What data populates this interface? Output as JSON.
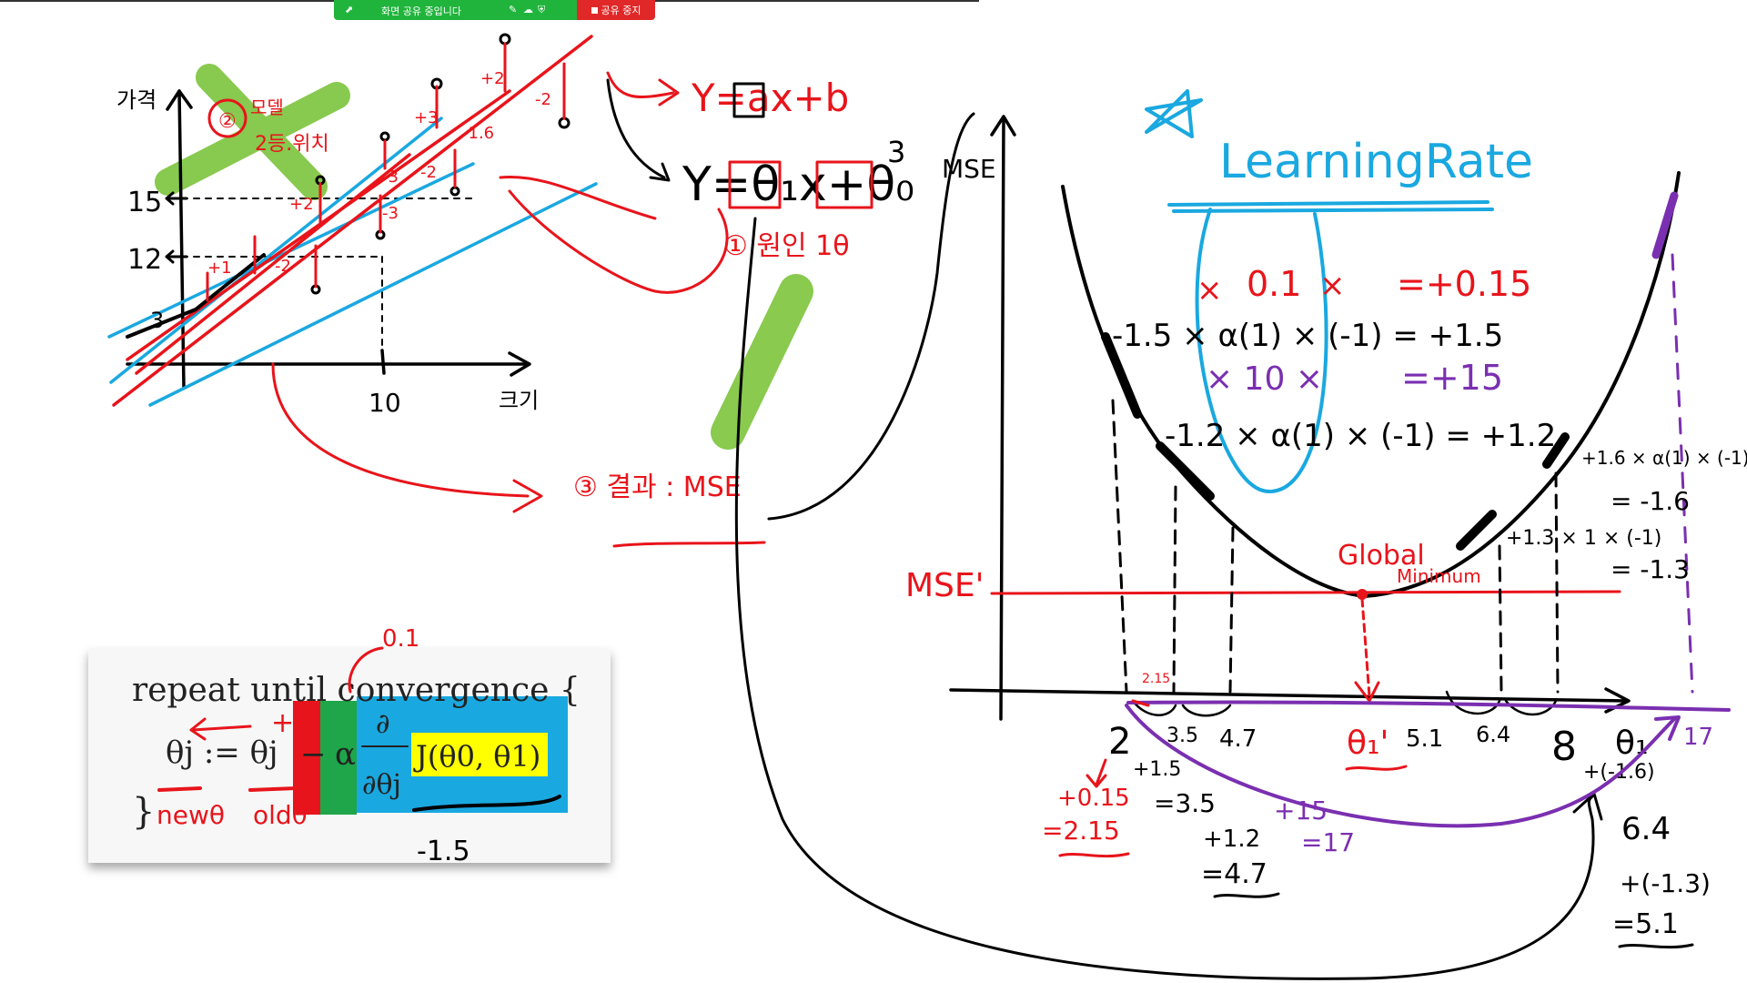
{
  "sharebar": {
    "status_label": "화면 공유 중입니다",
    "stop_label": "공유 중지",
    "colors": {
      "bar": "#20b43c",
      "stop": "#e02828"
    }
  },
  "colors": {
    "ink": "#000000",
    "red": "#e8141b",
    "blue": "#1aa8e0",
    "purple": "#7a2fb0",
    "green": "#7cc43c",
    "yellow": "#ffff00",
    "formula_green": "#1fa64a"
  },
  "left_graph": {
    "y_axis_label": "가격",
    "x_axis_label": "크기",
    "ticks": {
      "y15": "15",
      "y12": "12",
      "y3": "3",
      "x10": "10"
    },
    "annot2": {
      "num": "②",
      "line1": "모델",
      "line2": "2등.위치"
    },
    "diffs": [
      "+2",
      "+3",
      "+2",
      "+1",
      "-2",
      "-2",
      "-3",
      "-1.6",
      "-3",
      "-2"
    ]
  },
  "equations": {
    "eq1": "Y=ax+b",
    "eq2": "Y=θ₁x+θ₀",
    "b_note": "3",
    "note1": "① 원인 1θ",
    "note3": "③ 결과 : MSE",
    "mse": "MSE"
  },
  "formula": {
    "line1": "repeat until convergence {",
    "lhs": "θj := θj",
    "minus": "−",
    "alpha": "α",
    "partial_top": "∂",
    "partial_bottom": "∂θj",
    "cost": "J(θ0, θ1)",
    "close": "}",
    "new_label": "newθ",
    "old_label": "oldθ",
    "alpha_note": "0.1",
    "grad_note": "-1.5",
    "plus": "+"
  },
  "right_graph": {
    "title": "LearningRate",
    "y_axis": "MSE",
    "mse_prime": "MSE'",
    "global1": "Global",
    "global2": "Minimum",
    "calc_line1": {
      "lead": "×",
      "a": "0.1",
      "b": "×",
      "res": "=+0.15"
    },
    "calc_line2": "-1.5 × α(1) × (-1) = +1.5",
    "calc_line3": {
      "a": "× 10 ×",
      "res": "=+15"
    },
    "calc_line4": "-1.2 × α(1) × (-1) = +1.2",
    "right_note1": "+1.6 × α(1) × (-1)",
    "right_note1b": "= -1.6",
    "right_note2": "+1.3 × 1 × (-1)",
    "right_note2b": "= -1.3",
    "x_ticks": {
      "t2": "2",
      "t35": "3.5",
      "t47": "4.7",
      "theta1p": "θ₁'",
      "t51": "5.1",
      "t64": "6.4",
      "t8": "8",
      "theta1": "θ₁",
      "t17": "17",
      "t215": "2.15"
    },
    "below": {
      "r1": "+0.15",
      "r2": "=2.15",
      "b1": "+1.5",
      "b2": "=3.5",
      "b3": "+1.2",
      "b4": "=4.7",
      "p1": "+15",
      "p2": "=17",
      "c1": "+(-1.6)",
      "c2": "6.4",
      "c3": "+(-1.3)",
      "c4": "=5.1"
    }
  }
}
